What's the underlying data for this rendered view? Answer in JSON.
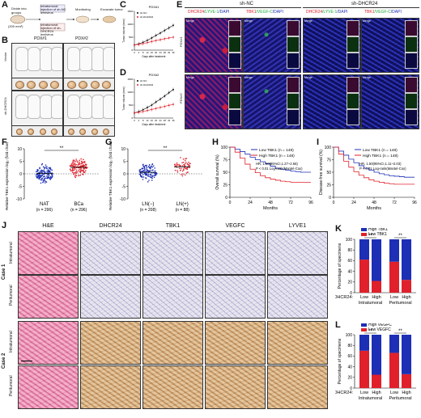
{
  "panel_letters": [
    "A",
    "B",
    "C",
    "D",
    "E",
    "F",
    "G",
    "H",
    "I",
    "J",
    "K",
    "L"
  ],
  "panelA": {
    "steps": [
      "Divide into groups",
      "Intratumoral injection of sh-NC lentivirus",
      "Intratumoral injection of sh-DHCR24 lentivirus",
      "Monitoring",
      "Excavate tumor"
    ],
    "volume_label": "(200 mm³)"
  },
  "panelB": {
    "cols": [
      "PDX#1",
      "PDX#2"
    ],
    "rows": [
      "Vector",
      "sh-DHCR24"
    ]
  },
  "panelC": {
    "title": "PDX#1",
    "legend": [
      "sh-NC",
      "sh-DHCR24"
    ],
    "xlabel": "Days after treatment",
    "ylabel": "Tumor volume (mm³)"
  },
  "panelD": {
    "title": "PDX#2",
    "legend": [
      "sh-NC",
      "sh-DHCR24"
    ],
    "xlabel": "Days after treatment",
    "ylabel": "Tumor volume (mm³)"
  },
  "panelE": {
    "groups": [
      "sh-NC",
      "sh-DHCR24"
    ],
    "col_titles": [
      {
        "a": "DHCR24",
        "b": "/LYVE-1",
        "c": "/DAPI"
      },
      {
        "a": "TBK1",
        "b": "/VEGF-C",
        "c": "/DAPI"
      },
      {
        "a": "DHCR24",
        "b": "/LYVE-1",
        "c": "/DAPI"
      },
      {
        "a": "TBK1",
        "b": "/VEGF-C",
        "c": "/DAPI"
      }
    ],
    "rows": [
      "PDX#1",
      "PDX#2"
    ],
    "merge_label": "Merge"
  },
  "chart_data": [
    {
      "panel": "C",
      "type": "line",
      "title": "PDX#1",
      "x": [
        0,
        4,
        8,
        12,
        16,
        20,
        24,
        28,
        32,
        36
      ],
      "series": [
        {
          "name": "sh-NC",
          "values": [
            200,
            240,
            300,
            380,
            470,
            570,
            660,
            760,
            860,
            960
          ]
        },
        {
          "name": "sh-DHCR24",
          "values": [
            200,
            220,
            250,
            290,
            330,
            370,
            400,
            440,
            470,
            500
          ]
        }
      ],
      "xlabel": "Days after treatment",
      "ylabel": "Tumor volume (mm³)",
      "xticks": [
        "0",
        "4",
        "8",
        "12",
        "16",
        "20",
        "24",
        "28",
        "32",
        "36"
      ],
      "yticks": [
        "0",
        "500",
        "1000",
        "1500"
      ],
      "ylim": [
        0,
        1500
      ]
    },
    {
      "panel": "D",
      "type": "line",
      "title": "PDX#2",
      "x": [
        0,
        4,
        8,
        12,
        16,
        20,
        24,
        28,
        32,
        36
      ],
      "series": [
        {
          "name": "sh-NC",
          "values": [
            200,
            250,
            320,
            410,
            500,
            620,
            730,
            850,
            980,
            1100
          ]
        },
        {
          "name": "sh-DHCR24",
          "values": [
            200,
            220,
            250,
            290,
            330,
            370,
            410,
            450,
            490,
            530
          ]
        }
      ],
      "xlabel": "Days after treatment",
      "ylabel": "Tumor volume (mm³)",
      "xticks": [
        "0",
        "4",
        "8",
        "12",
        "16",
        "20",
        "24",
        "28",
        "32",
        "36"
      ],
      "yticks": [
        "0",
        "500",
        "1000",
        "1500"
      ],
      "ylim": [
        0,
        1500
      ]
    },
    {
      "panel": "F",
      "type": "scatter",
      "categories": [
        "NAT",
        "BCa"
      ],
      "n_labels": [
        "(n = 296)",
        "(n = 296)"
      ],
      "ylabel": "Relative TBK1 expression log₂ (fold change)",
      "yticks": [
        "-10",
        "-5",
        "0",
        "5",
        "10"
      ],
      "ylim": [
        -10,
        10
      ],
      "significance": "**",
      "colors": [
        "#1c2fb5",
        "#e0202a"
      ]
    },
    {
      "panel": "G",
      "type": "scatter",
      "categories": [
        "LN(−)",
        "LN(+)"
      ],
      "n_labels": [
        "(n = 208)",
        "(n = 88)"
      ],
      "ylabel": "Relative TBK1 expression log₂ (fold change)",
      "yticks": [
        "-10",
        "-5",
        "0",
        "5",
        "10"
      ],
      "ylim": [
        -10,
        10
      ],
      "significance": "**",
      "colors": [
        "#1c2fb5",
        "#e0202a"
      ]
    },
    {
      "panel": "H",
      "type": "line",
      "ylabel": "Overall survival (%)",
      "xlabel": "Months",
      "xticks": [
        "0",
        "24",
        "48",
        "72",
        "96"
      ],
      "yticks": [
        "0",
        "25",
        "50",
        "75",
        "100"
      ],
      "xlim": [
        0,
        96
      ],
      "ylim": [
        0,
        100
      ],
      "legend": [
        "Low TBK1 (n = 148)",
        "High TBK1 (n = 148)"
      ],
      "annotation": [
        "HR, 1.60(95%CI,1.27~2.56)",
        "P < 0.01 Log-rank(Mantel-Cox)"
      ],
      "series": [
        {
          "name": "Low TBK1 (n = 148)",
          "x": [
            0,
            6,
            12,
            18,
            24,
            30,
            36,
            42,
            48,
            54,
            60,
            66,
            72,
            78,
            84,
            90,
            96
          ],
          "values": [
            100,
            96,
            91,
            86,
            80,
            75,
            71,
            67,
            62,
            58,
            56,
            54,
            52,
            51,
            50,
            50,
            50
          ]
        },
        {
          "name": "High TBK1 (n = 148)",
          "x": [
            0,
            6,
            12,
            18,
            24,
            30,
            36,
            42,
            48,
            54,
            60,
            66,
            72,
            78,
            84,
            90,
            96
          ],
          "values": [
            100,
            90,
            78,
            66,
            56,
            49,
            43,
            39,
            36,
            34,
            32,
            31,
            30,
            30,
            30,
            30,
            30
          ]
        }
      ]
    },
    {
      "panel": "I",
      "type": "line",
      "ylabel": "Disease-free survival (%)",
      "xlabel": "Months",
      "xticks": [
        "0",
        "24",
        "48",
        "72",
        "96"
      ],
      "yticks": [
        "0",
        "25",
        "50",
        "75",
        "100"
      ],
      "xlim": [
        0,
        96
      ],
      "ylim": [
        0,
        100
      ],
      "legend": [
        "Low TBK1 (n = 148)",
        "High TBK1 (n = 148)"
      ],
      "annotation": [
        "HR, 1.50(95%CI,1.11~2.03)",
        "P < 0.01 Log-rank(Mantel-Cox)"
      ],
      "series": [
        {
          "name": "Low TBK1 (n = 148)",
          "x": [
            0,
            6,
            12,
            18,
            24,
            30,
            36,
            42,
            48,
            54,
            60,
            66,
            72,
            78,
            84,
            90,
            96
          ],
          "values": [
            100,
            92,
            84,
            76,
            69,
            63,
            58,
            54,
            50,
            47,
            45,
            43,
            42,
            41,
            40,
            40,
            40
          ]
        },
        {
          "name": "High TBK1 (n = 148)",
          "x": [
            0,
            6,
            12,
            18,
            24,
            30,
            36,
            42,
            48,
            54,
            60,
            66,
            72,
            78,
            84,
            90,
            96
          ],
          "values": [
            100,
            86,
            72,
            60,
            51,
            44,
            39,
            35,
            32,
            30,
            28,
            27,
            26,
            26,
            26,
            26,
            26
          ]
        }
      ]
    },
    {
      "panel": "K",
      "type": "bar",
      "groups": [
        "Intratumoral",
        "Peritumoral"
      ],
      "categories": [
        "Low",
        "High",
        "Low",
        "High"
      ],
      "x_prefix": "DHCR24:",
      "ylabel": "Percentage of specimens",
      "yticks": [
        "0",
        "20",
        "40",
        "60",
        "80",
        "100"
      ],
      "ylim": [
        0,
        100
      ],
      "legend": [
        "High TBK1",
        "Low TBK1"
      ],
      "series": [
        {
          "name": "Low TBK1",
          "values": [
            62,
            22,
            58,
            24
          ],
          "color": "#e0202a"
        },
        {
          "name": "High TBK1",
          "values": [
            38,
            78,
            42,
            76
          ],
          "color": "#1c2fb5"
        }
      ],
      "significance": [
        "**",
        "**"
      ]
    },
    {
      "panel": "L",
      "type": "bar",
      "groups": [
        "Intratumoral",
        "Peritumoral"
      ],
      "categories": [
        "Low",
        "High",
        "Low",
        "High"
      ],
      "x_prefix": "DHCR24:",
      "ylabel": "Percentage of specimens",
      "yticks": [
        "0",
        "20",
        "40",
        "60",
        "80",
        "100"
      ],
      "ylim": [
        0,
        100
      ],
      "legend": [
        "High VEGFC",
        "Low VEGFC"
      ],
      "series": [
        {
          "name": "Low VEGFC",
          "values": [
            70,
            25,
            66,
            26
          ],
          "color": "#e0202a"
        },
        {
          "name": "High VEGFC",
          "values": [
            30,
            75,
            34,
            74
          ],
          "color": "#1c2fb5"
        }
      ],
      "significance": [
        "**",
        "**"
      ]
    }
  ],
  "panelJ": {
    "col_titles": [
      "H&E",
      "DHCR24",
      "TBK1",
      "VEGFC",
      "LYVE1"
    ],
    "cases": [
      "Case 1",
      "Case 2"
    ],
    "regions": [
      "Intratumoral",
      "Peritumoral"
    ]
  }
}
